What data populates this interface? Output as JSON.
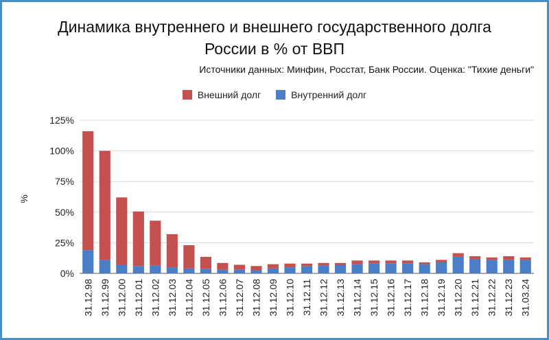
{
  "chart_data": {
    "type": "bar",
    "stacked": true,
    "title_line1": "Динамика внутреннего и внешнего государственного долга",
    "title_line2": "России в % от ВВП",
    "subtitle": "Источники данных: Минфин, Росстат, Банк России. Оценка: \"Тихие деньги\"",
    "xlabel": "",
    "ylabel": "%",
    "ylim": [
      0,
      125
    ],
    "yticks": [
      0,
      25,
      50,
      75,
      100,
      125
    ],
    "ytick_labels": [
      "0%",
      "25%",
      "50%",
      "75%",
      "100%",
      "125%"
    ],
    "grid": true,
    "legend_position": "top-center",
    "categories": [
      "31.12.98",
      "31.12.99",
      "31.12.00",
      "31.12.01",
      "31.12.02",
      "31.12.03",
      "31.12.04",
      "31.12.05",
      "31.12.06",
      "31.12.07",
      "31.12.08",
      "31.12.09",
      "31.12.10",
      "31.12.11",
      "31.12.12",
      "31.12.13",
      "31.12.14",
      "31.12.15",
      "31.12.16",
      "31.12.17",
      "31.12.18",
      "31.12.19",
      "31.12.20",
      "31.12.21",
      "31.12.22",
      "31.12.23",
      "31.03.24"
    ],
    "series": [
      {
        "name": "Внутренний долг",
        "color": "#4a7fc8",
        "values": [
          19,
          11,
          7,
          6,
          6.5,
          5,
          4,
          3.5,
          3,
          3,
          2.5,
          4,
          5,
          6,
          6.5,
          7,
          7.5,
          8,
          8,
          8,
          7.5,
          9,
          13.5,
          11.5,
          11,
          11,
          11
        ]
      },
      {
        "name": "Внешний долг",
        "color": "#c55050",
        "values": [
          97,
          89,
          55,
          44.5,
          36.5,
          27,
          19,
          10,
          5.5,
          4,
          3.5,
          3.5,
          3,
          2,
          2,
          1.5,
          3,
          2.5,
          2.5,
          2.5,
          1.5,
          2,
          3,
          2.5,
          2,
          3,
          2
        ]
      }
    ]
  }
}
